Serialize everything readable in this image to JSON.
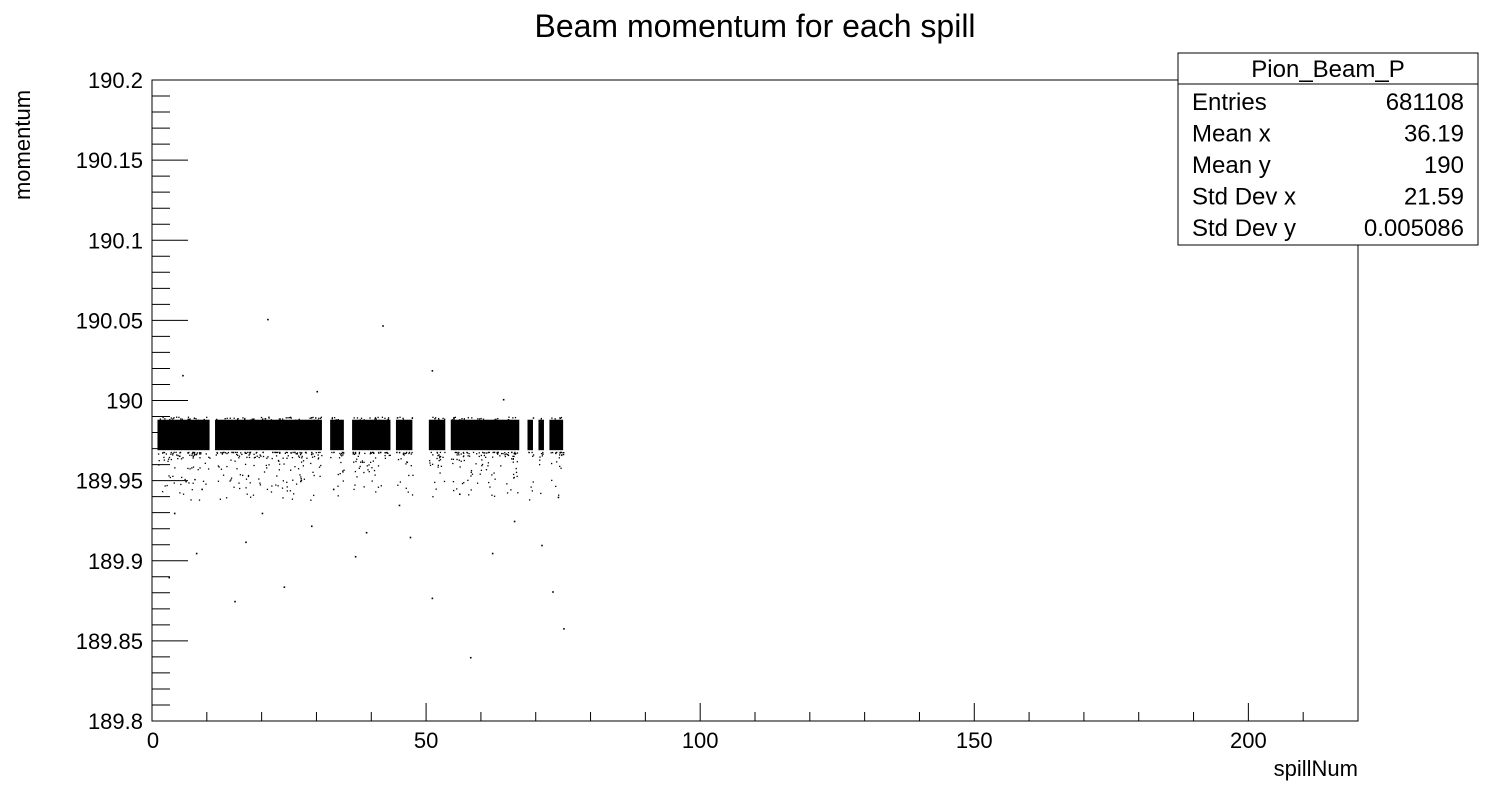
{
  "chart_data": {
    "type": "scatter",
    "title": "Beam momentum for each spill",
    "xlabel": "spillNum",
    "ylabel": "momentum",
    "xlim": [
      0,
      220
    ],
    "ylim": [
      189.8,
      190.2
    ],
    "x_ticks": [
      "0",
      "50",
      "100",
      "150",
      "200"
    ],
    "y_ticks": [
      "189.8",
      "189.85",
      "189.9",
      "189.95",
      "190",
      "190.05",
      "190.1",
      "190.15",
      "190.2"
    ],
    "marker_color": "#000000",
    "grid": false,
    "dense_band": {
      "y_range": [
        189.969,
        189.988
      ],
      "x_segments": [
        [
          1,
          10.5
        ],
        [
          11.5,
          31
        ],
        [
          32.5,
          35
        ],
        [
          36.5,
          43.5
        ],
        [
          44.5,
          47.5
        ],
        [
          50.5,
          53.5
        ],
        [
          54.5,
          67
        ],
        [
          68.5,
          69.5
        ],
        [
          70.5,
          71.5
        ],
        [
          72.5,
          75
        ]
      ]
    },
    "outliers": [
      {
        "x": 21,
        "y": 190.051
      },
      {
        "x": 42,
        "y": 190.047
      },
      {
        "x": 5.5,
        "y": 190.016
      },
      {
        "x": 51,
        "y": 190.019
      },
      {
        "x": 30,
        "y": 190.006
      },
      {
        "x": 64,
        "y": 190.001
      },
      {
        "x": 15,
        "y": 189.875
      },
      {
        "x": 24,
        "y": 189.884
      },
      {
        "x": 51,
        "y": 189.877
      },
      {
        "x": 58,
        "y": 189.84
      },
      {
        "x": 73,
        "y": 189.881
      },
      {
        "x": 75,
        "y": 189.858
      },
      {
        "x": 37,
        "y": 189.903
      },
      {
        "x": 17,
        "y": 189.912
      },
      {
        "x": 29,
        "y": 189.922
      },
      {
        "x": 62,
        "y": 189.905
      },
      {
        "x": 71,
        "y": 189.91
      },
      {
        "x": 4,
        "y": 189.93
      },
      {
        "x": 9,
        "y": 189.945
      },
      {
        "x": 45,
        "y": 189.935
      },
      {
        "x": 56,
        "y": 189.942
      },
      {
        "x": 66,
        "y": 189.925
      },
      {
        "x": 39,
        "y": 189.918
      },
      {
        "x": 27,
        "y": 189.95
      },
      {
        "x": 3,
        "y": 189.89
      },
      {
        "x": 74,
        "y": 189.94
      },
      {
        "x": 8,
        "y": 189.905
      },
      {
        "x": 20,
        "y": 189.93
      },
      {
        "x": 33,
        "y": 189.945
      },
      {
        "x": 47,
        "y": 189.915
      }
    ],
    "stats_box": {
      "title": "Pion_Beam_P",
      "rows": [
        {
          "label": "Entries",
          "value": "681108"
        },
        {
          "label": "Mean x",
          "value": "36.19"
        },
        {
          "label": "Mean y",
          "value": "190"
        },
        {
          "label": "Std Dev x",
          "value": "21.59"
        },
        {
          "label": "Std Dev y",
          "value": "0.005086"
        }
      ]
    }
  }
}
